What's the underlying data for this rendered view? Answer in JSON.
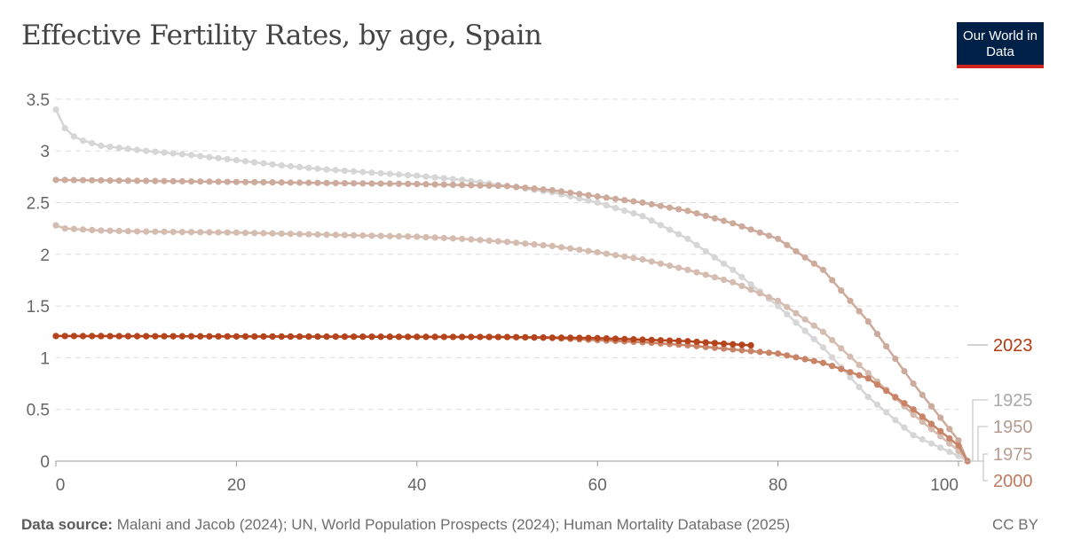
{
  "header": {
    "title": "Effective Fertility Rates, by age, Spain",
    "logo_text": "Our World in Data"
  },
  "footer": {
    "source_label": "Data source:",
    "source_text": "Malani and Jacob (2024); UN, World Population Prospects (2024); Human Mortality Database (2025)",
    "license": "CC BY"
  },
  "chart_data": {
    "type": "line",
    "title": "Effective Fertility Rates, by age, Spain",
    "xlim": [
      0,
      101
    ],
    "ylim": [
      0,
      3.5
    ],
    "x_ticks": [
      "0",
      "20",
      "40",
      "60",
      "80",
      "100"
    ],
    "y_ticks": [
      "0",
      "0.5",
      "1",
      "1.5",
      "2",
      "2.5",
      "3",
      "3.5"
    ],
    "grid": "horizontal-dashed",
    "legend": "right (inline labels)",
    "series": [
      {
        "name": "1925",
        "color": "#d6d6d6",
        "label_color": "#a9a9a9",
        "x": [
          0,
          1,
          2,
          3,
          5,
          10,
          15,
          20,
          25,
          30,
          35,
          40,
          45,
          50,
          55,
          60,
          65,
          70,
          75,
          80,
          85,
          90,
          95,
          100,
          101
        ],
        "y": [
          3.4,
          3.22,
          3.14,
          3.1,
          3.05,
          3.0,
          2.96,
          2.91,
          2.86,
          2.82,
          2.79,
          2.76,
          2.72,
          2.66,
          2.6,
          2.5,
          2.37,
          2.15,
          1.85,
          1.5,
          1.1,
          0.62,
          0.25,
          0.05,
          0
        ]
      },
      {
        "name": "1950",
        "color": "#cdab9c",
        "label_color": "#b39b91",
        "x": [
          0,
          10,
          20,
          30,
          40,
          50,
          55,
          60,
          65,
          70,
          75,
          80,
          85,
          90,
          95,
          100,
          101
        ],
        "y": [
          2.72,
          2.71,
          2.7,
          2.69,
          2.68,
          2.66,
          2.62,
          2.56,
          2.5,
          2.42,
          2.3,
          2.15,
          1.85,
          1.35,
          0.75,
          0.2,
          0
        ]
      },
      {
        "name": "1975",
        "color": "#d5bcb0",
        "label_color": "#b89e92",
        "x": [
          0,
          1,
          5,
          10,
          20,
          30,
          40,
          45,
          50,
          55,
          60,
          65,
          70,
          75,
          80,
          85,
          90,
          95,
          100,
          101
        ],
        "y": [
          2.28,
          2.25,
          2.23,
          2.22,
          2.21,
          2.19,
          2.17,
          2.15,
          2.12,
          2.08,
          2.02,
          1.95,
          1.85,
          1.73,
          1.55,
          1.25,
          0.85,
          0.45,
          0.1,
          0
        ]
      },
      {
        "name": "2000",
        "color": "#c98468",
        "label_color": "#c07a5f",
        "x": [
          0,
          50,
          55,
          60,
          65,
          70,
          75,
          80,
          85,
          90,
          95,
          100,
          101
        ],
        "y": [
          1.21,
          1.2,
          1.19,
          1.17,
          1.15,
          1.12,
          1.08,
          1.04,
          0.95,
          0.8,
          0.5,
          0.15,
          0
        ]
      },
      {
        "name": "2023",
        "color": "#b5441c",
        "label_color": "#b23a10",
        "x": [
          0,
          50,
          60,
          70,
          75,
          77
        ],
        "y": [
          1.21,
          1.2,
          1.19,
          1.16,
          1.13,
          1.12
        ]
      }
    ]
  }
}
